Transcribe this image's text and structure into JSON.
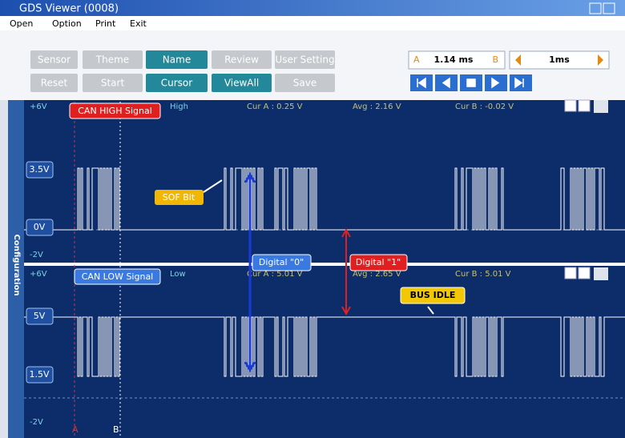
{
  "window": {
    "title": "GDS Viewer (0008)"
  },
  "menu": [
    "Open",
    "Option",
    "Print",
    "Exit"
  ],
  "toolbar": {
    "row1": [
      "Sensor",
      "Theme",
      "Name",
      "Review",
      "User Setting"
    ],
    "row2": [
      "Reset",
      "Start",
      "Cursor",
      "ViewAll",
      "Save"
    ],
    "cursor": {
      "a": "A",
      "time": "1.14 ms",
      "b": "B"
    },
    "timebase": "1ms"
  },
  "side_tab": "Configuration",
  "channels": [
    {
      "scale_top": "+6V",
      "name": "CAN HIGH Signal",
      "mode": "High",
      "cur_a": "Cur A : 0.25 V",
      "avg": "Avg : 2.16 V",
      "cur_b": "Cur B : -0.02 V",
      "levels": [
        "3.5V",
        "0V"
      ],
      "scale_bottom": "-2V"
    },
    {
      "scale_top": "+6V",
      "name": "CAN LOW Signal",
      "mode": "Low",
      "cur_a": "Cur A : 5.01 V",
      "avg": "Avg : 2.65 V",
      "cur_b": "Cur B : 5.01 V",
      "levels": [
        "5V",
        "1.5V"
      ],
      "scale_bottom": "-2V"
    }
  ],
  "annotations": {
    "sof": "SOF Bit",
    "digital_0": "Digital \"0\"",
    "digital_1": "Digital \"1\"",
    "bus_idle": "BUS IDLE"
  },
  "cursor_markers": [
    "A",
    "B"
  ]
}
